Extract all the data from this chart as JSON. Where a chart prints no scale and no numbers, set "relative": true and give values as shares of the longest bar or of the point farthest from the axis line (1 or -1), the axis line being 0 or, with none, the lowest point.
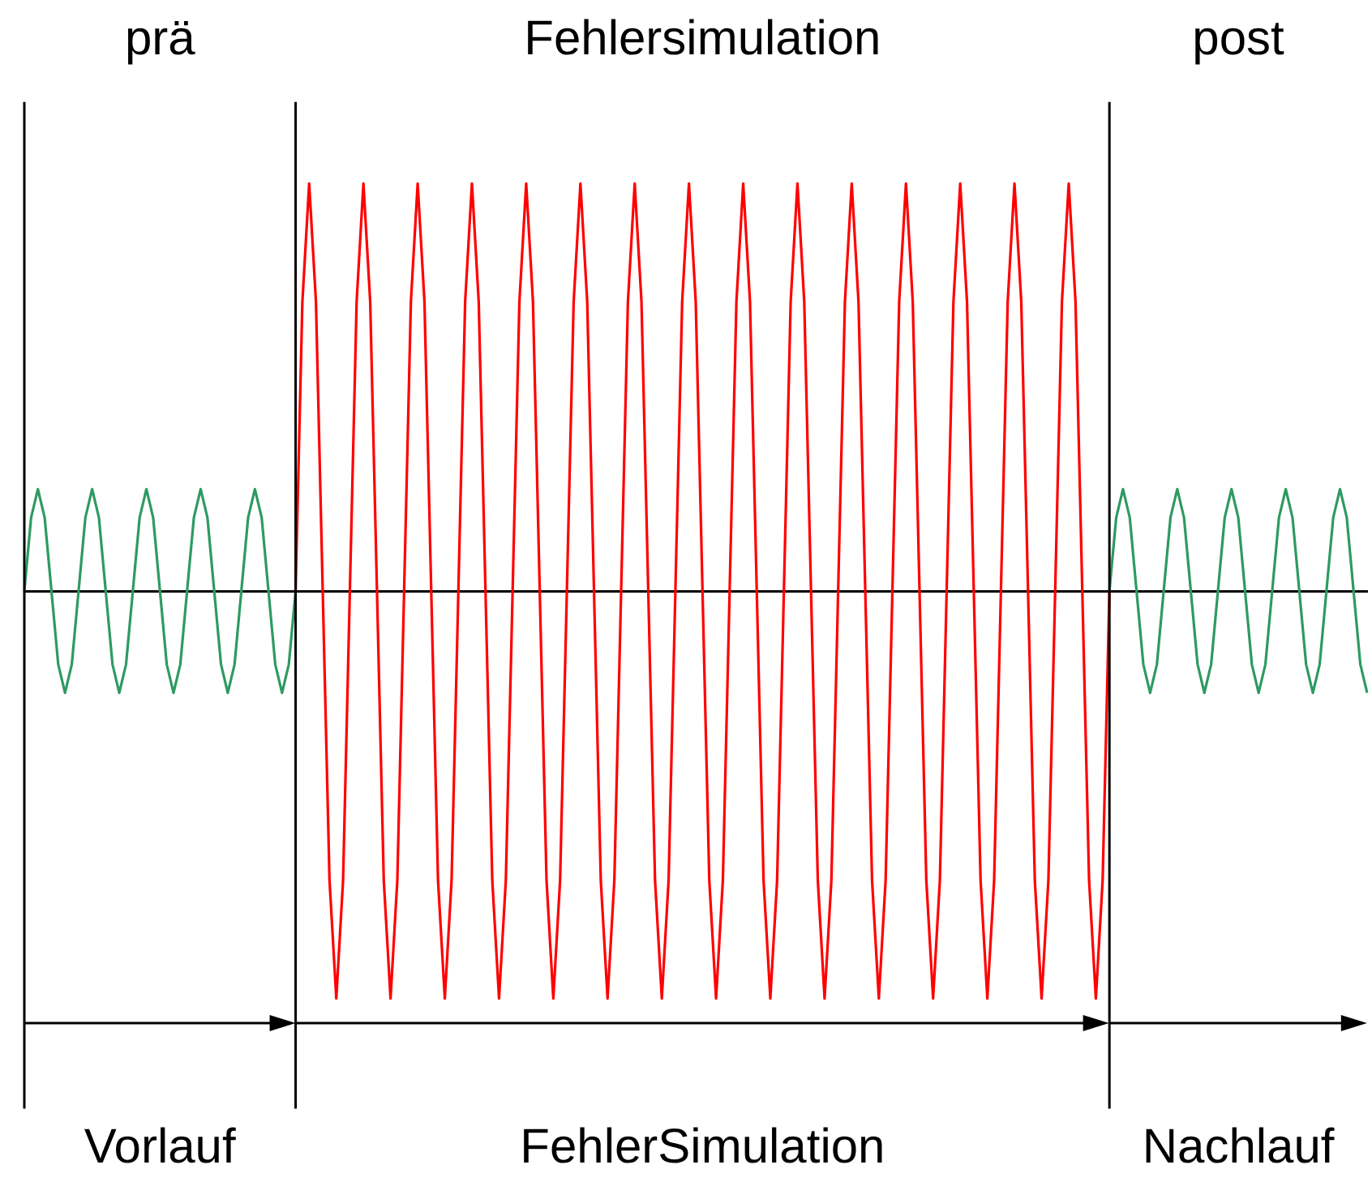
{
  "chart_data": {
    "type": "line",
    "relative": true,
    "categories": [
      null,
      null,
      null,
      null,
      null,
      null,
      null,
      null,
      null,
      null,
      null,
      null,
      null,
      null,
      null,
      null,
      null,
      null,
      null,
      null,
      null,
      null,
      null,
      null,
      null,
      null,
      null,
      null,
      null,
      null,
      null,
      null,
      null,
      null,
      null,
      null,
      null,
      null,
      null,
      null,
      null,
      null,
      null,
      null,
      null,
      null,
      null,
      null,
      null,
      null,
      null,
      null,
      null,
      null,
      null,
      null,
      null,
      null,
      null,
      null,
      null,
      null,
      null,
      null,
      null,
      null,
      null,
      null,
      null,
      null,
      null,
      null,
      null,
      null,
      null,
      null,
      null,
      null,
      null,
      null,
      null,
      null,
      null,
      null,
      null,
      null,
      null,
      null,
      null,
      null,
      null,
      null,
      null,
      null,
      null,
      null,
      null,
      null,
      null,
      null,
      null,
      null,
      null,
      null,
      null,
      null,
      null,
      null,
      null,
      null,
      null,
      null,
      null,
      null,
      null,
      null,
      null,
      null,
      null,
      null,
      null,
      null,
      null,
      null,
      null,
      null,
      null,
      null,
      null,
      null,
      null,
      null,
      null,
      null,
      null,
      null,
      null,
      null,
      null,
      null,
      null,
      null,
      null,
      null,
      null,
      null,
      null,
      null,
      null,
      null,
      null,
      null,
      null,
      null,
      null,
      null,
      null,
      null,
      null,
      null,
      null,
      null,
      null,
      null,
      null,
      null,
      null,
      null,
      null,
      null,
      null,
      null,
      null,
      null,
      null,
      null,
      null,
      null,
      null,
      null,
      null,
      null,
      null,
      null,
      null,
      null,
      null,
      null,
      null,
      null,
      null,
      null,
      null,
      null,
      null,
      null,
      null,
      null,
      null
    ],
    "series": [
      {
        "color": "#2e9a62",
        "values": [
          0,
          0.18,
          0.25,
          0.18,
          0,
          -0.18,
          -0.25,
          -0.18,
          0,
          0.18,
          0.25,
          0.18,
          0,
          -0.18,
          -0.25,
          -0.18,
          0,
          0.18,
          0.25,
          0.18,
          0,
          -0.18,
          -0.25,
          -0.18,
          0,
          0.18,
          0.25,
          0.18,
          0,
          -0.18,
          -0.25,
          -0.18,
          0,
          0.18,
          0.25,
          0.18,
          0,
          -0.18,
          -0.25,
          -0.18,
          0,
          null,
          null,
          null,
          null,
          null,
          null,
          null,
          null,
          null,
          null,
          null,
          null,
          null,
          null,
          null,
          null,
          null,
          null,
          null,
          null,
          null,
          null,
          null,
          null,
          null,
          null,
          null,
          null,
          null,
          null,
          null,
          null,
          null,
          null,
          null,
          null,
          null,
          null,
          null,
          null,
          null,
          null,
          null,
          null,
          null,
          null,
          null,
          null,
          null,
          null,
          null,
          null,
          null,
          null,
          null,
          null,
          null,
          null,
          null,
          null,
          null,
          null,
          null,
          null,
          null,
          null,
          null,
          null,
          null,
          null,
          null,
          null,
          null,
          null,
          null,
          null,
          null,
          null,
          null,
          null,
          null,
          null,
          null,
          null,
          null,
          null,
          null,
          null,
          null,
          null,
          null,
          null,
          null,
          null,
          null,
          null,
          null,
          null,
          null,
          null,
          null,
          null,
          null,
          null,
          null,
          null,
          null,
          null,
          null,
          null,
          null,
          null,
          null,
          null,
          null,
          null,
          null,
          null,
          null,
          null,
          null,
          null,
          null,
          null,
          null,
          null,
          null,
          null,
          null,
          null,
          null,
          null,
          null,
          null,
          null,
          null,
          null,
          null,
          null,
          null,
          null,
          null,
          null,
          null,
          null,
          null,
          null,
          null,
          null,
          null,
          null,
          null,
          null,
          null,
          null,
          null,
          null,
          null
        ]
      },
      {
        "color": "#ff0000",
        "values": [
          null,
          null,
          null,
          null,
          null,
          null,
          null,
          null,
          null,
          null,
          null,
          null,
          null,
          null,
          null,
          null,
          null,
          null,
          null,
          null,
          null,
          null,
          null,
          null,
          null,
          null,
          null,
          null,
          null,
          null,
          null,
          null,
          null,
          null,
          null,
          null,
          null,
          null,
          null,
          null,
          0,
          0.71,
          1,
          0.71,
          0,
          -0.71,
          -1,
          -0.71,
          0,
          0.71,
          1,
          0.71,
          0,
          -0.71,
          -1,
          -0.71,
          0,
          0.71,
          1,
          0.71,
          0,
          -0.71,
          -1,
          -0.71,
          0,
          0.71,
          1,
          0.71,
          0,
          -0.71,
          -1,
          -0.71,
          0,
          0.71,
          1,
          0.71,
          0,
          -0.71,
          -1,
          -0.71,
          0,
          0.71,
          1,
          0.71,
          0,
          -0.71,
          -1,
          -0.71,
          0,
          0.71,
          1,
          0.71,
          0,
          -0.71,
          -1,
          -0.71,
          0,
          0.71,
          1,
          0.71,
          0,
          -0.71,
          -1,
          -0.71,
          0,
          0.71,
          1,
          0.71,
          0,
          -0.71,
          -1,
          -0.71,
          0,
          0.71,
          1,
          0.71,
          0,
          -0.71,
          -1,
          -0.71,
          0,
          0.71,
          1,
          0.71,
          0,
          -0.71,
          -1,
          -0.71,
          0,
          0.71,
          1,
          0.71,
          0,
          -0.71,
          -1,
          -0.71,
          0,
          0.71,
          1,
          0.71,
          0,
          -0.71,
          -1,
          -0.71,
          0,
          0.71,
          1,
          0.71,
          0,
          -0.71,
          -1,
          -0.71,
          0,
          0.71,
          1,
          0.71,
          0,
          -0.71,
          -1,
          -0.71,
          0,
          null,
          null,
          null,
          null,
          null,
          null,
          null,
          null,
          null,
          null,
          null,
          null,
          null,
          null,
          null,
          null,
          null,
          null,
          null,
          null,
          null,
          null,
          null,
          null,
          null,
          null,
          null,
          null,
          null,
          null,
          null,
          null,
          null,
          null,
          null,
          null,
          null,
          null
        ]
      },
      {
        "color": "#2e9a62",
        "values": [
          null,
          null,
          null,
          null,
          null,
          null,
          null,
          null,
          null,
          null,
          null,
          null,
          null,
          null,
          null,
          null,
          null,
          null,
          null,
          null,
          null,
          null,
          null,
          null,
          null,
          null,
          null,
          null,
          null,
          null,
          null,
          null,
          null,
          null,
          null,
          null,
          null,
          null,
          null,
          null,
          null,
          null,
          null,
          null,
          null,
          null,
          null,
          null,
          null,
          null,
          null,
          null,
          null,
          null,
          null,
          null,
          null,
          null,
          null,
          null,
          null,
          null,
          null,
          null,
          null,
          null,
          null,
          null,
          null,
          null,
          null,
          null,
          null,
          null,
          null,
          null,
          null,
          null,
          null,
          null,
          null,
          null,
          null,
          null,
          null,
          null,
          null,
          null,
          null,
          null,
          null,
          null,
          null,
          null,
          null,
          null,
          null,
          null,
          null,
          null,
          null,
          null,
          null,
          null,
          null,
          null,
          null,
          null,
          null,
          null,
          null,
          null,
          null,
          null,
          null,
          null,
          null,
          null,
          null,
          null,
          null,
          null,
          null,
          null,
          null,
          null,
          null,
          null,
          null,
          null,
          null,
          null,
          null,
          null,
          null,
          null,
          null,
          null,
          null,
          null,
          null,
          null,
          null,
          null,
          null,
          null,
          null,
          null,
          null,
          null,
          null,
          null,
          null,
          null,
          null,
          null,
          null,
          null,
          null,
          null,
          0,
          0.18,
          0.25,
          0.18,
          0,
          -0.18,
          -0.25,
          -0.18,
          0,
          0.18,
          0.25,
          0.18,
          0,
          -0.18,
          -0.25,
          -0.18,
          0,
          0.18,
          0.25,
          0.18,
          0,
          -0.18,
          -0.25,
          -0.18,
          0,
          0.18,
          0.25,
          0.18,
          0,
          -0.18,
          -0.25,
          -0.18,
          0,
          0.18,
          0.25,
          0.18,
          0,
          -0.18,
          -0.25
        ]
      }
    ],
    "annotations": [
      "prä",
      "Fehlersimulation",
      "post",
      "Vorlauf",
      "FehlerSimulation",
      "Nachlauf"
    ],
    "grid": false,
    "legend": false,
    "marker": "none",
    "line_style": "solid"
  }
}
